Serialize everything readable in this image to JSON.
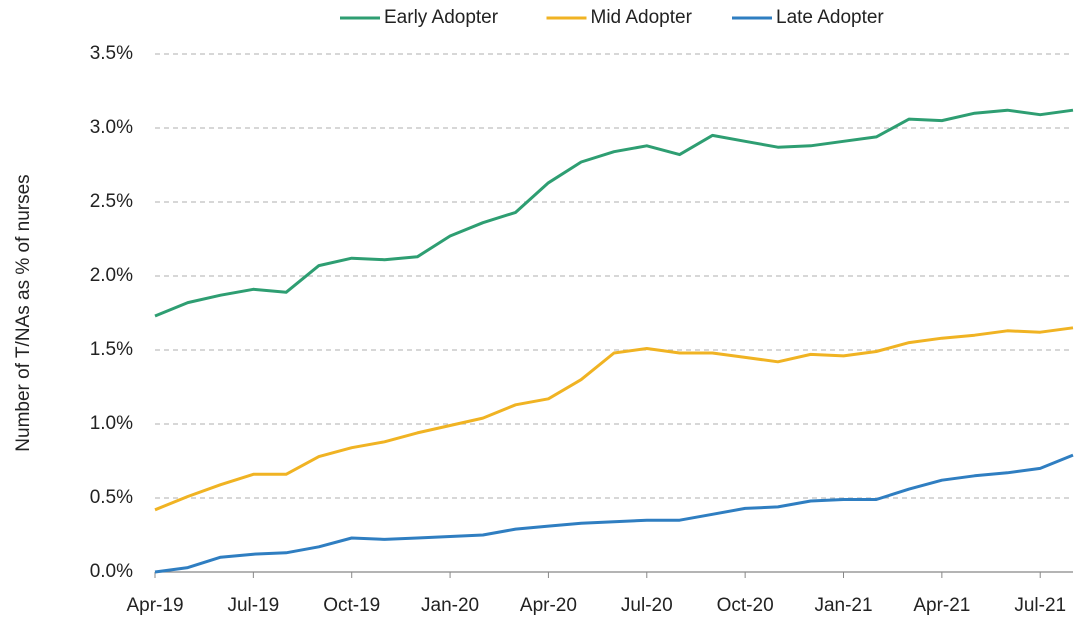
{
  "chart_data": {
    "type": "line",
    "y_label": "Number of T/NAs as % of nurses",
    "categories": [
      "Apr-19",
      null,
      null,
      "Jul-19",
      null,
      null,
      "Oct-19",
      null,
      null,
      "Jan-20",
      null,
      null,
      "Apr-20",
      null,
      null,
      "Jul-20",
      null,
      null,
      "Oct-20",
      null,
      null,
      "Jan-21",
      null,
      null,
      "Apr-21",
      null,
      null,
      "Jul-21",
      null
    ],
    "series": [
      {
        "name": "Early Adopter",
        "color": "#2e9e72",
        "values": [
          1.73,
          1.82,
          1.87,
          1.91,
          1.89,
          2.07,
          2.12,
          2.11,
          2.13,
          2.27,
          2.36,
          2.43,
          2.63,
          2.77,
          2.84,
          2.88,
          2.82,
          2.95,
          2.91,
          2.87,
          2.88,
          2.91,
          2.94,
          3.06,
          3.05,
          3.1,
          3.12,
          3.09,
          3.12
        ]
      },
      {
        "name": "Mid Adopter",
        "color": "#f0b323",
        "values": [
          0.42,
          0.51,
          0.59,
          0.66,
          0.66,
          0.78,
          0.84,
          0.88,
          0.94,
          0.99,
          1.04,
          1.13,
          1.17,
          1.3,
          1.48,
          1.51,
          1.48,
          1.48,
          1.45,
          1.42,
          1.47,
          1.46,
          1.49,
          1.55,
          1.58,
          1.6,
          1.63,
          1.62,
          1.65
        ]
      },
      {
        "name": "Late Adopter",
        "color": "#2f7ec1",
        "values": [
          0.0,
          0.03,
          0.1,
          0.12,
          0.13,
          0.17,
          0.23,
          0.22,
          0.23,
          0.24,
          0.25,
          0.29,
          0.31,
          0.33,
          0.34,
          0.35,
          0.35,
          0.39,
          0.43,
          0.44,
          0.48,
          0.49,
          0.49,
          0.56,
          0.62,
          0.65,
          0.67,
          0.7,
          0.79
        ]
      }
    ],
    "ylim": [
      0,
      3.5
    ],
    "yticks": [
      {
        "value": 0,
        "label": "0.0%"
      },
      {
        "value": 0.5,
        "label": "0.5%"
      },
      {
        "value": 1,
        "label": "1.0%"
      },
      {
        "value": 1.5,
        "label": "1.5%"
      },
      {
        "value": 2,
        "label": "2.0%"
      },
      {
        "value": 2.5,
        "label": "2.5%"
      },
      {
        "value": 3,
        "label": "3.0%"
      },
      {
        "value": 3.5,
        "label": "3.5%"
      }
    ],
    "grid": true,
    "legend": "top"
  }
}
